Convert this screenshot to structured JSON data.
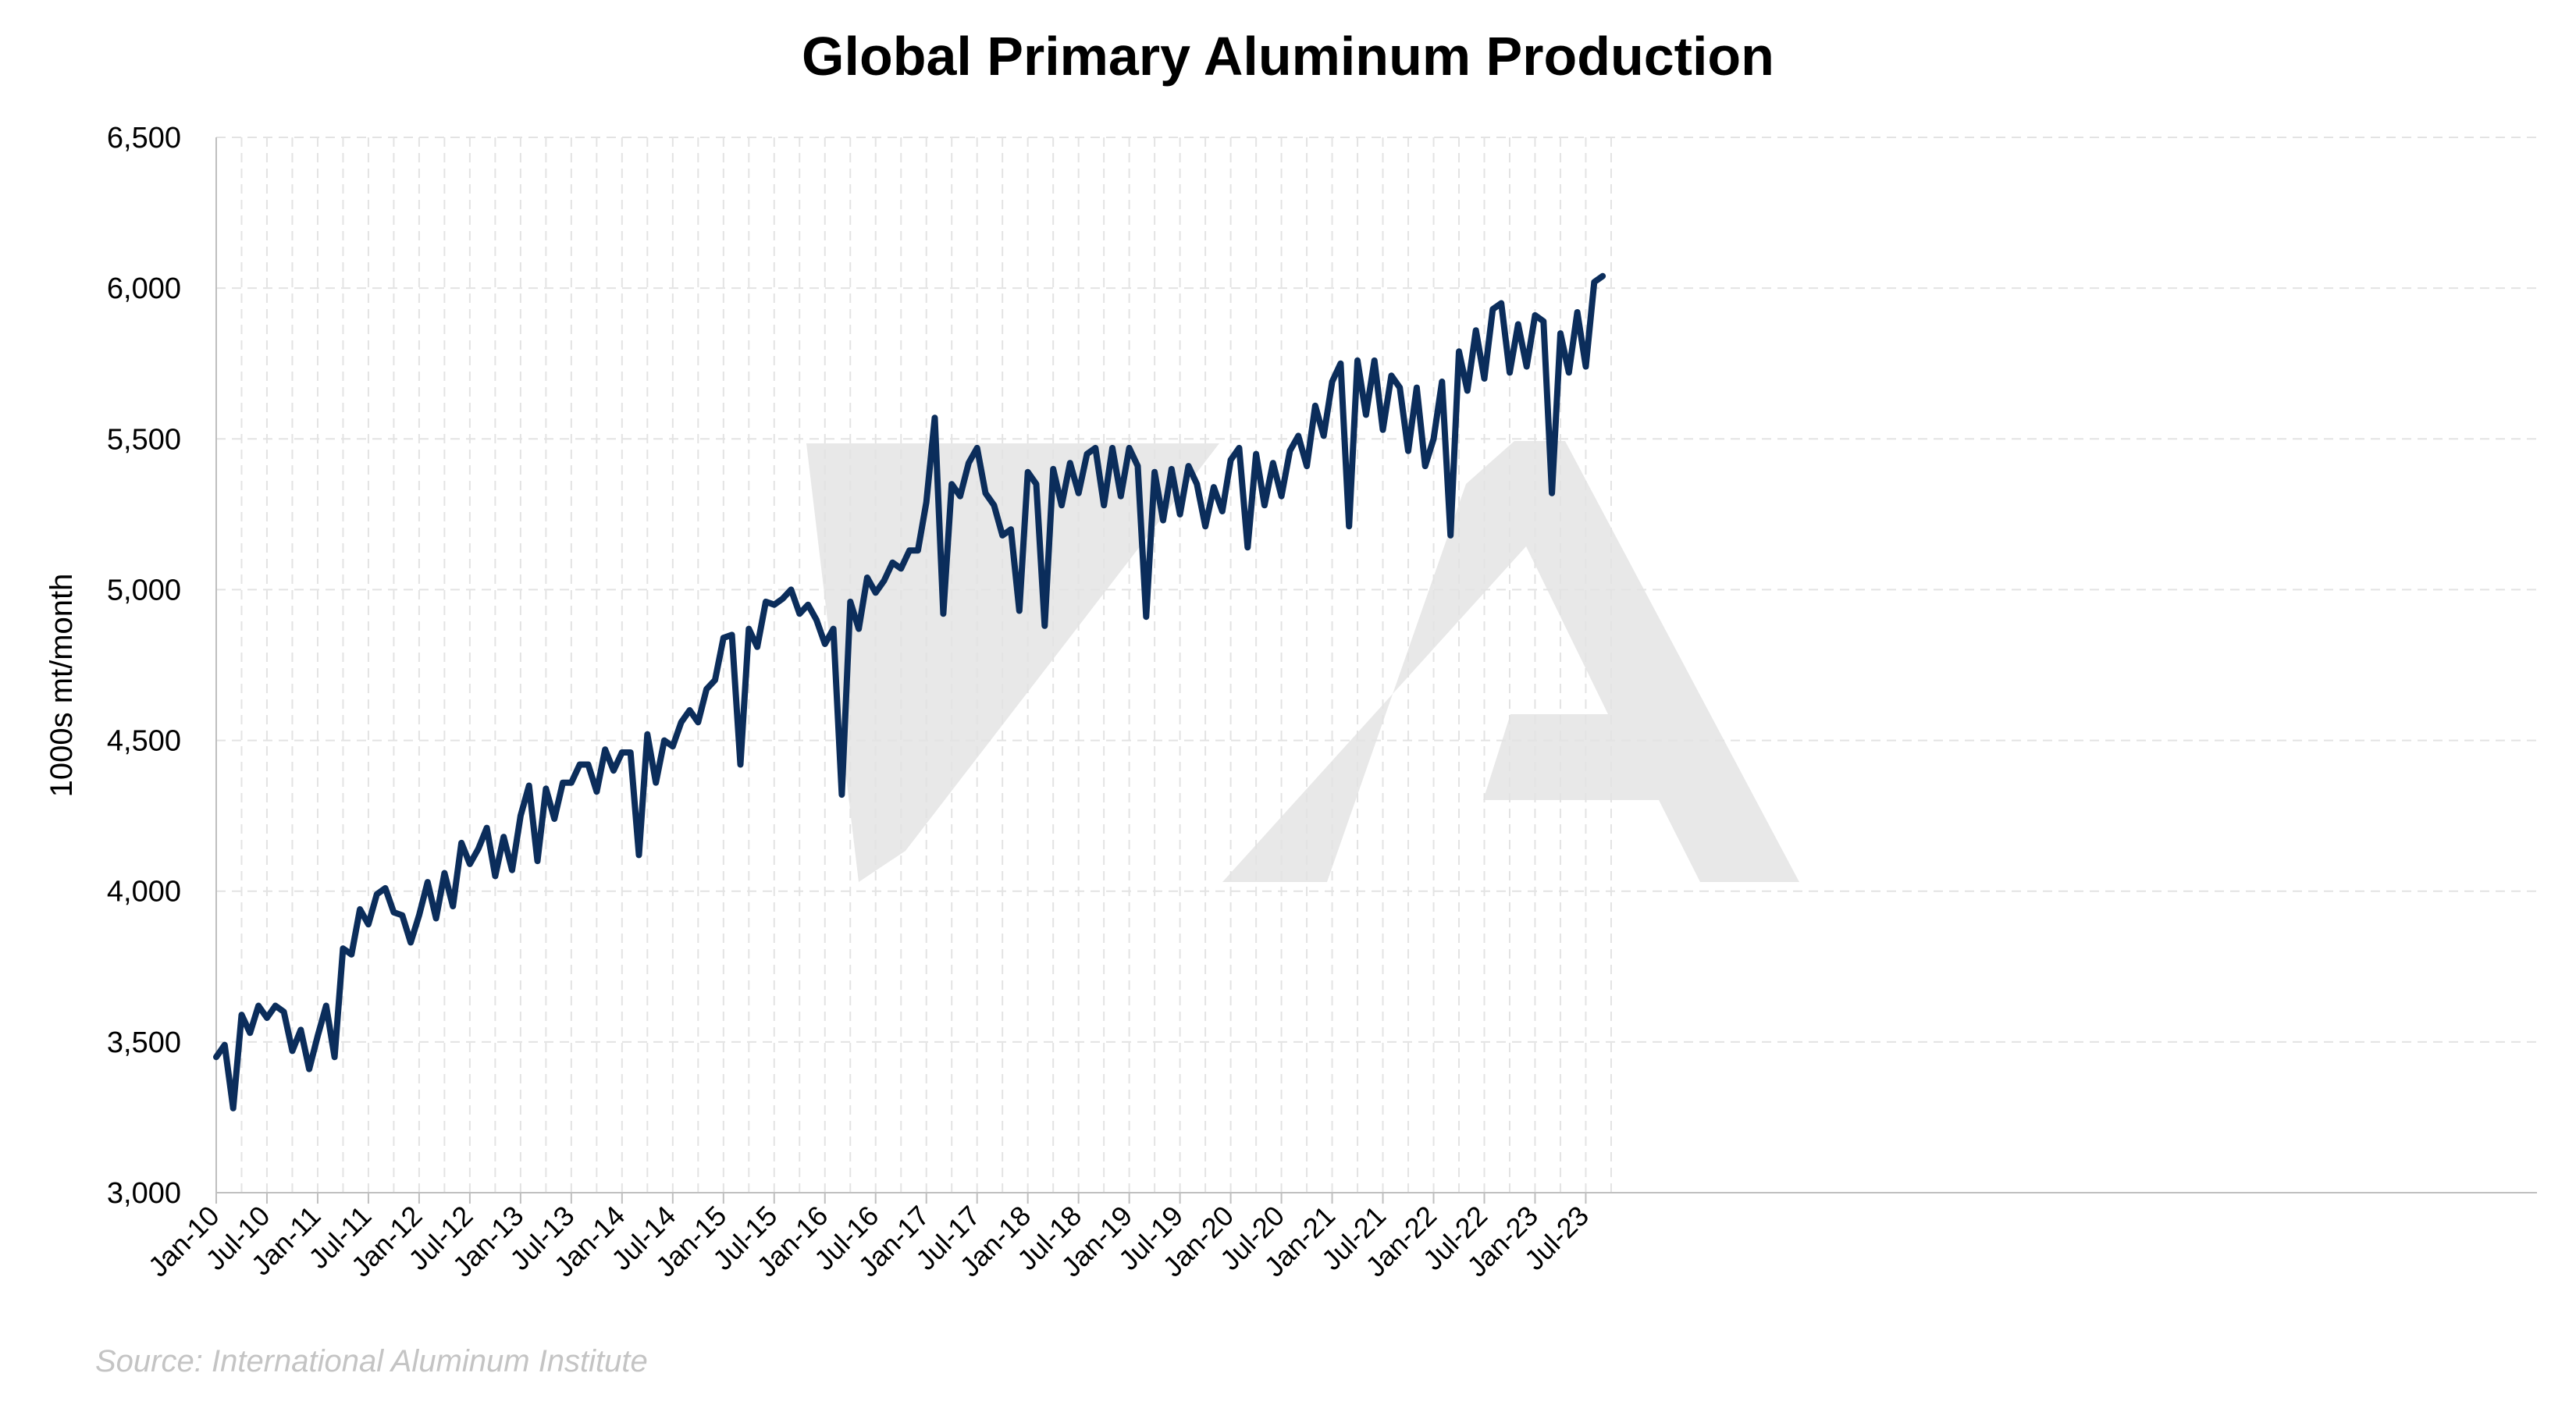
{
  "chart_data": {
    "type": "line",
    "title": "Global Primary Aluminum Production",
    "xlabel": "",
    "ylabel": "1000s mt/month",
    "ylim": [
      3000,
      6500
    ],
    "yticks": [
      3000,
      3500,
      4000,
      4500,
      5000,
      5500,
      6000,
      6500
    ],
    "ytick_labels": [
      "3,000",
      "3,500",
      "4,000",
      "4,500",
      "5,000",
      "5,500",
      "6,000",
      "6,500"
    ],
    "x_start": "Jan-10",
    "x_end": "Sep-23",
    "xtick_labels": [
      "Jan-10",
      "Jul-10",
      "Jan-11",
      "Jul-11",
      "Jan-12",
      "Jul-12",
      "Jan-13",
      "Jul-13",
      "Jan-14",
      "Jul-14",
      "Jan-15",
      "Jul-15",
      "Jan-16",
      "Jul-16",
      "Jan-17",
      "Jul-17",
      "Jan-18",
      "Jul-18",
      "Jan-19",
      "Jul-19",
      "Jan-20",
      "Jul-20",
      "Jan-21",
      "Jul-21",
      "Jan-22",
      "Jul-22",
      "Jan-23",
      "Jul-23"
    ],
    "grid": true,
    "line_color": "#0b2d5b",
    "series": [
      {
        "values": [
          3450,
          3490,
          3280,
          3590,
          3530,
          3620,
          3580,
          3620,
          3600,
          3470,
          3540,
          3410,
          3520,
          3620,
          3450,
          3810,
          3790,
          3940,
          3890,
          3990,
          4010,
          3930,
          3920,
          3830,
          3920,
          4030,
          3910,
          4060,
          3950,
          4160,
          4090,
          4140,
          4210,
          4050,
          4180,
          4070,
          4250,
          4350,
          4100,
          4340,
          4240,
          4360,
          4360,
          4420,
          4420,
          4330,
          4470,
          4400,
          4460,
          4460,
          4120,
          4520,
          4360,
          4500,
          4480,
          4560,
          4600,
          4560,
          4670,
          4700,
          4840,
          4850,
          4420,
          4870,
          4810,
          4960,
          4950,
          4970,
          5000,
          4920,
          4950,
          4900,
          4820,
          4870,
          4320,
          4960,
          4870,
          5040,
          4990,
          5030,
          5090,
          5070,
          5130,
          5130,
          5290,
          5570,
          4920,
          5350,
          5310,
          5420,
          5470,
          5320,
          5280,
          5180,
          5200,
          4930,
          5390,
          5350,
          4880,
          5400,
          5280,
          5420,
          5320,
          5450,
          5470,
          5280,
          5470,
          5310,
          5470,
          5410,
          4910,
          5390,
          5230,
          5400,
          5250,
          5410,
          5350,
          5210,
          5340,
          5260,
          5430,
          5470,
          5140,
          5450,
          5280,
          5420,
          5310,
          5460,
          5510,
          5410,
          5610,
          5510,
          5690,
          5750,
          5210,
          5760,
          5580,
          5760,
          5530,
          5710,
          5670,
          5460,
          5670,
          5410,
          5500,
          5690,
          5180,
          5790,
          5660,
          5860,
          5700,
          5930,
          5950,
          5720,
          5880,
          5740,
          5910,
          5890,
          5320,
          5850,
          5720,
          5920,
          5740,
          6020,
          6040
        ]
      }
    ],
    "watermark_text": "7A",
    "source": "Source: International Aluminum Institute"
  }
}
